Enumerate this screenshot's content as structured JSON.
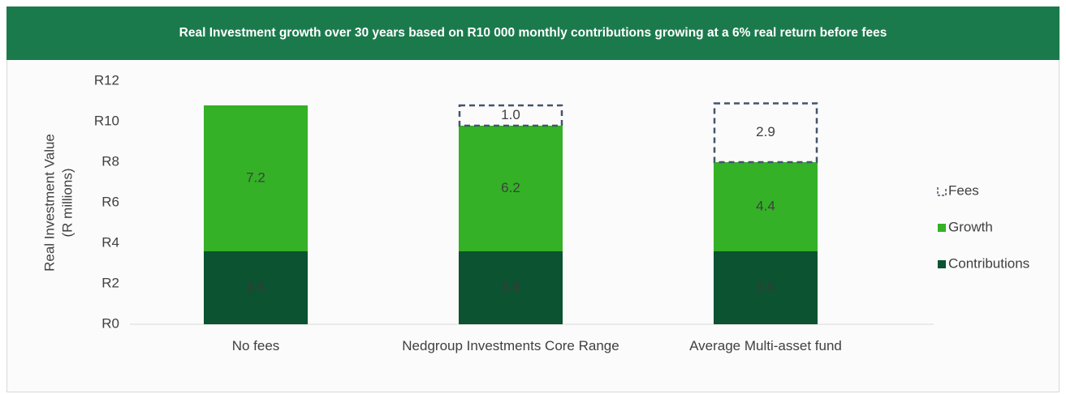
{
  "chart_data": {
    "type": "stacked_bar",
    "title": "Real Investment growth over 30 years based on R10 000 monthly contributions growing at a 6% real return before fees",
    "y_label": [
      "Real Investment Value",
      "(R millions)"
    ],
    "categories": [
      "No fees",
      "Nedgroup Investments Core Range",
      "Average Multi-asset fund"
    ],
    "series": [
      {
        "name": "Contributions",
        "color": "#0b5331",
        "values": [
          3.6,
          3.6,
          3.6
        ],
        "label_color": "#3a3a3a"
      },
      {
        "name": "Growth",
        "color": "#34b126",
        "values": [
          7.2,
          6.2,
          4.4
        ],
        "label_color": "#404040"
      },
      {
        "name": "Fees",
        "color": "#44546a",
        "style": "dashed",
        "values": [
          null,
          1.0,
          2.9
        ],
        "value_labels": [
          null,
          "1.0",
          "2.9"
        ],
        "label_color": "#404040"
      }
    ],
    "ylim": [
      0,
      12
    ],
    "yticks": [
      {
        "value": 0,
        "label": "R0"
      },
      {
        "value": 2,
        "label": "R2"
      },
      {
        "value": 4,
        "label": "R4"
      },
      {
        "value": 6,
        "label": "R6"
      },
      {
        "value": 8,
        "label": "R8"
      },
      {
        "value": 10,
        "label": "R10"
      },
      {
        "value": 12,
        "label": "R12"
      }
    ],
    "legend": "right"
  }
}
